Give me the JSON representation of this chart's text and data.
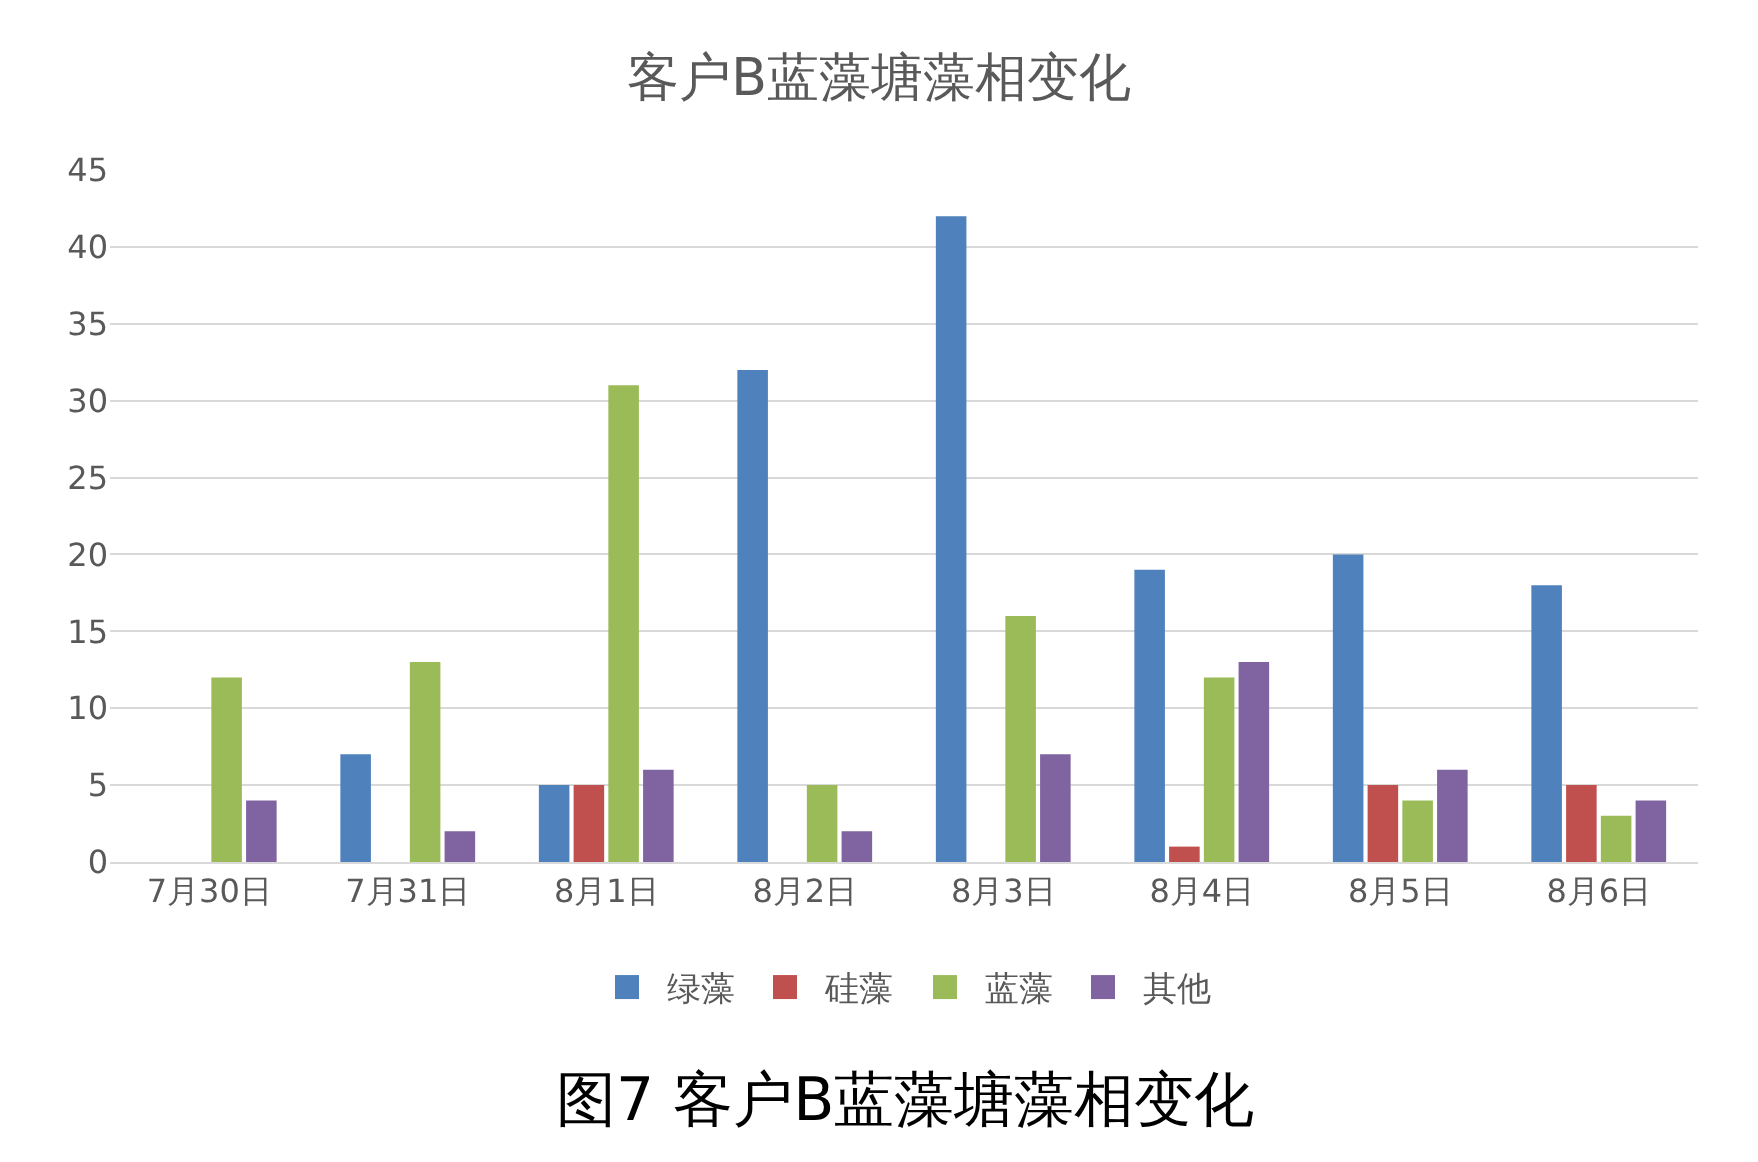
{
  "chart_data": {
    "type": "bar",
    "title": "客户B蓝藻塘藻相变化",
    "categories": [
      "7月30日",
      "7月31日",
      "8月1日",
      "8月2日",
      "8月3日",
      "8月4日",
      "8月5日",
      "8月6日"
    ],
    "series": [
      {
        "name": "绿藻",
        "color": "#4f81bd",
        "values": [
          0,
          7,
          5,
          32,
          42,
          19,
          20,
          18
        ]
      },
      {
        "name": "硅藻",
        "color": "#c0504d",
        "values": [
          0,
          0,
          5,
          0,
          0,
          1,
          5,
          5
        ]
      },
      {
        "name": "蓝藻",
        "color": "#9bbb59",
        "values": [
          12,
          13,
          31,
          5,
          16,
          12,
          4,
          3
        ]
      },
      {
        "name": "其他",
        "color": "#8064a2",
        "values": [
          4,
          2,
          6,
          2,
          7,
          13,
          6,
          4
        ]
      }
    ],
    "ylim": [
      0,
      45
    ],
    "yticks": [
      0,
      5,
      10,
      15,
      20,
      25,
      30,
      35,
      40,
      45
    ],
    "grid": "y",
    "legend": "bottom",
    "annotations": [
      "图7 客户B蓝藻塘藻相变化"
    ]
  }
}
